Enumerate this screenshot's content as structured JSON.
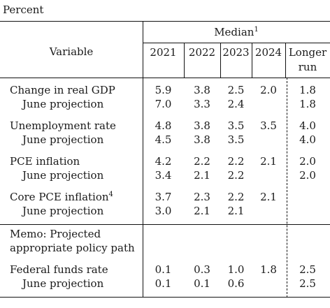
{
  "unit_label": "Percent",
  "header": {
    "variable": "Variable",
    "median": "Median",
    "median_note": "1",
    "years": [
      "2021",
      "2022",
      "2023",
      "2024"
    ],
    "longer_run_1": "Longer",
    "longer_run_2": "run"
  },
  "rows": [
    {
      "label": "Change in real GDP",
      "v": [
        "5.9",
        "3.8",
        "2.5",
        "2.0",
        "1.8"
      ]
    },
    {
      "label": "June projection",
      "v": [
        "7.0",
        "3.3",
        "2.4",
        "",
        "1.8"
      ]
    },
    {
      "label": "Unemployment rate",
      "v": [
        "4.8",
        "3.8",
        "3.5",
        "3.5",
        "4.0"
      ]
    },
    {
      "label": "June projection",
      "v": [
        "4.5",
        "3.8",
        "3.5",
        "",
        "4.0"
      ]
    },
    {
      "label": "PCE inflation",
      "v": [
        "4.2",
        "2.2",
        "2.2",
        "2.1",
        "2.0"
      ]
    },
    {
      "label": "June projection",
      "v": [
        "3.4",
        "2.1",
        "2.2",
        "",
        "2.0"
      ]
    },
    {
      "label": "Core PCE inflation",
      "note": "4",
      "v": [
        "3.7",
        "2.3",
        "2.2",
        "2.1",
        ""
      ]
    },
    {
      "label": "June projection",
      "v": [
        "3.0",
        "2.1",
        "2.1",
        "",
        ""
      ]
    },
    {
      "label": "Federal funds rate",
      "v": [
        "0.1",
        "0.3",
        "1.0",
        "1.8",
        "2.5"
      ]
    },
    {
      "label": "June projection",
      "v": [
        "0.1",
        "0.1",
        "0.6",
        "",
        "2.5"
      ]
    }
  ],
  "memo": [
    "Memo: Projected",
    "appropriate policy path"
  ]
}
